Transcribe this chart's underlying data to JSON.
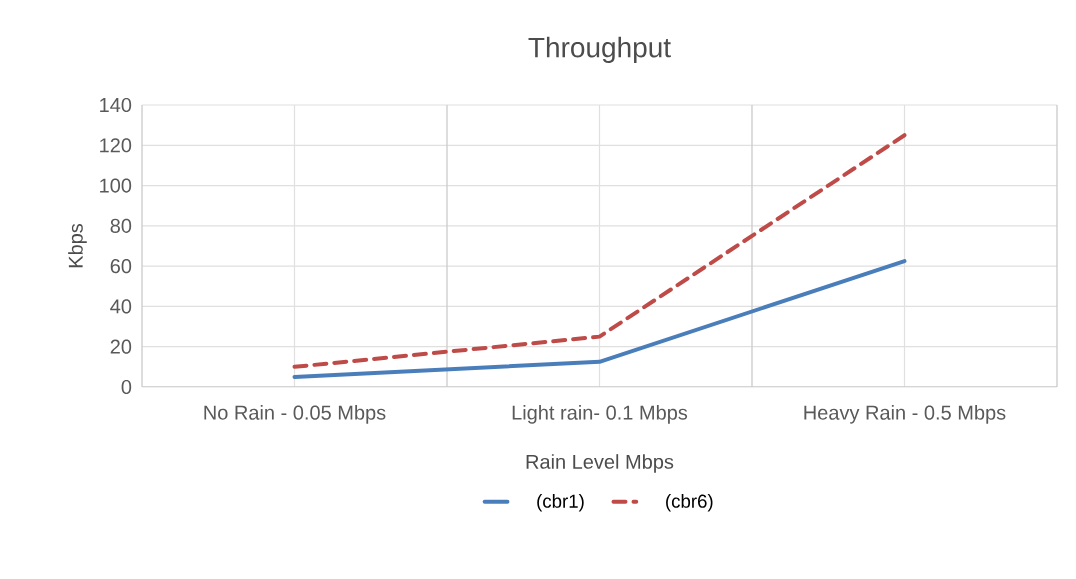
{
  "chart_data": {
    "type": "line",
    "title": "Throughput",
    "xlabel": "Rain Level Mbps",
    "ylabel": "Kbps",
    "categories": [
      "No Rain - 0.05 Mbps",
      "Light rain- 0.1 Mbps",
      "Heavy Rain - 0.5 Mbps"
    ],
    "series": [
      {
        "name": "(cbr1)",
        "color": "#4a7ebb",
        "line_style": "solid",
        "values": [
          5,
          12.5,
          62.5
        ]
      },
      {
        "name": "(cbr6)",
        "color": "#be4b48",
        "line_style": "dashed",
        "values": [
          10,
          25,
          125
        ]
      }
    ],
    "ylim": [
      0,
      140
    ],
    "yticks": [
      0,
      20,
      40,
      60,
      80,
      100,
      120,
      140
    ],
    "grid": true,
    "legend": "bottom",
    "marker": "none"
  }
}
